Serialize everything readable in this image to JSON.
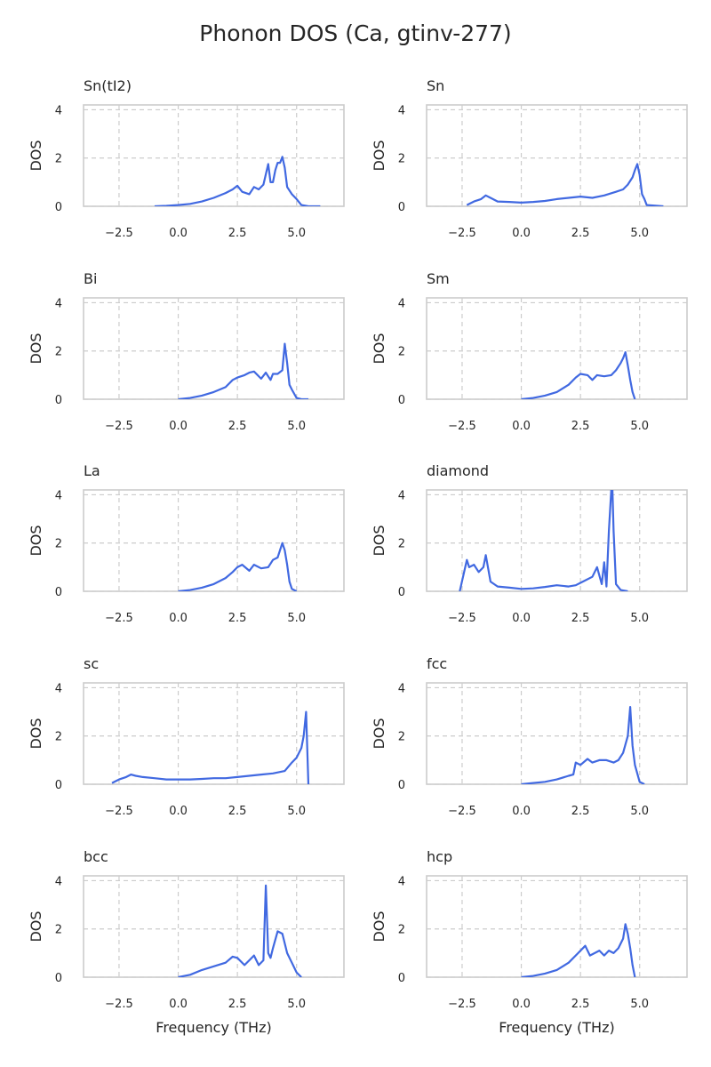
{
  "title": "Phonon DOS (Ca, gtinv-277)",
  "colors": {
    "line": "#4169e1",
    "grid": "#cccccc",
    "spine": "#cccccc",
    "text": "#262626"
  },
  "chart_data": [
    {
      "type": "line",
      "title": "Sn(tI2)",
      "xlabel": "",
      "ylabel": "DOS",
      "xlim": [
        -4,
        7
      ],
      "ylim": [
        0,
        4.2
      ],
      "xticks": [
        "−2.5",
        "0.0",
        "2.5",
        "5.0"
      ],
      "yticks": [
        "0",
        "2",
        "4"
      ],
      "grid": true,
      "series": [
        {
          "x": [
            -1.0,
            -0.5,
            0.0,
            0.5,
            1.0,
            1.5,
            2.0,
            2.3,
            2.5,
            2.7,
            3.0,
            3.2,
            3.4,
            3.6,
            3.8,
            3.9,
            4.0,
            4.1,
            4.2,
            4.3,
            4.4,
            4.5,
            4.6,
            4.8,
            5.0,
            5.2,
            5.5,
            6.0
          ],
          "y": [
            0.0,
            0.02,
            0.05,
            0.1,
            0.2,
            0.35,
            0.55,
            0.7,
            0.85,
            0.6,
            0.5,
            0.8,
            0.7,
            0.9,
            1.75,
            1.0,
            1.0,
            1.5,
            1.8,
            1.8,
            2.05,
            1.6,
            0.8,
            0.5,
            0.3,
            0.05,
            0.0,
            0.0
          ]
        }
      ]
    },
    {
      "type": "line",
      "title": "Sn",
      "xlabel": "",
      "ylabel": "DOS",
      "xlim": [
        -4,
        7
      ],
      "ylim": [
        0,
        4.2
      ],
      "xticks": [
        "−2.5",
        "0.0",
        "2.5",
        "5.0"
      ],
      "yticks": [
        "0",
        "2",
        "4"
      ],
      "grid": true,
      "series": [
        {
          "x": [
            -2.3,
            -2.0,
            -1.7,
            -1.5,
            -1.3,
            -1.0,
            -0.5,
            0.0,
            0.5,
            1.0,
            1.5,
            2.0,
            2.5,
            3.0,
            3.5,
            4.0,
            4.3,
            4.5,
            4.7,
            4.8,
            4.9,
            5.0,
            5.1,
            5.2,
            5.3,
            6.0
          ],
          "y": [
            0.05,
            0.2,
            0.3,
            0.45,
            0.35,
            0.2,
            0.18,
            0.15,
            0.18,
            0.22,
            0.3,
            0.35,
            0.4,
            0.35,
            0.45,
            0.6,
            0.7,
            0.9,
            1.2,
            1.5,
            1.75,
            1.3,
            0.5,
            0.3,
            0.05,
            0.0
          ]
        }
      ]
    },
    {
      "type": "line",
      "title": "Bi",
      "xlabel": "",
      "ylabel": "DOS",
      "xlim": [
        -4,
        7
      ],
      "ylim": [
        0,
        4.2
      ],
      "xticks": [
        "−2.5",
        "0.0",
        "2.5",
        "5.0"
      ],
      "yticks": [
        "0",
        "2",
        "4"
      ],
      "grid": true,
      "series": [
        {
          "x": [
            0.0,
            0.5,
            1.0,
            1.5,
            2.0,
            2.3,
            2.5,
            2.8,
            3.0,
            3.2,
            3.5,
            3.7,
            3.9,
            4.0,
            4.2,
            4.4,
            4.5,
            4.6,
            4.7,
            4.8,
            5.0,
            5.2,
            5.5
          ],
          "y": [
            0.0,
            0.05,
            0.15,
            0.3,
            0.5,
            0.8,
            0.9,
            1.0,
            1.1,
            1.15,
            0.85,
            1.1,
            0.8,
            1.05,
            1.05,
            1.2,
            2.3,
            1.5,
            0.6,
            0.4,
            0.05,
            0.0,
            0.0
          ]
        }
      ]
    },
    {
      "type": "line",
      "title": "Sm",
      "xlabel": "",
      "ylabel": "DOS",
      "xlim": [
        -4,
        7
      ],
      "ylim": [
        0,
        4.2
      ],
      "xticks": [
        "−2.5",
        "0.0",
        "2.5",
        "5.0"
      ],
      "yticks": [
        "0",
        "2",
        "4"
      ],
      "grid": true,
      "series": [
        {
          "x": [
            0.0,
            0.5,
            1.0,
            1.5,
            2.0,
            2.3,
            2.5,
            2.8,
            3.0,
            3.2,
            3.5,
            3.8,
            4.0,
            4.2,
            4.3,
            4.4,
            4.5,
            4.6,
            4.7,
            4.8
          ],
          "y": [
            0.0,
            0.05,
            0.15,
            0.3,
            0.6,
            0.9,
            1.05,
            1.0,
            0.8,
            1.0,
            0.95,
            1.0,
            1.2,
            1.5,
            1.7,
            1.95,
            1.4,
            0.8,
            0.3,
            0.0
          ]
        }
      ]
    },
    {
      "type": "line",
      "title": "La",
      "xlabel": "",
      "ylabel": "DOS",
      "xlim": [
        -4,
        7
      ],
      "ylim": [
        0,
        4.2
      ],
      "xticks": [
        "−2.5",
        "0.0",
        "2.5",
        "5.0"
      ],
      "yticks": [
        "0",
        "2",
        "4"
      ],
      "grid": true,
      "series": [
        {
          "x": [
            0.0,
            0.5,
            1.0,
            1.5,
            2.0,
            2.3,
            2.5,
            2.7,
            3.0,
            3.2,
            3.5,
            3.8,
            4.0,
            4.2,
            4.4,
            4.5,
            4.6,
            4.7,
            4.8,
            5.0
          ],
          "y": [
            0.0,
            0.05,
            0.15,
            0.3,
            0.55,
            0.8,
            1.0,
            1.1,
            0.85,
            1.1,
            0.95,
            1.0,
            1.3,
            1.4,
            2.0,
            1.7,
            1.1,
            0.4,
            0.1,
            0.0
          ]
        }
      ]
    },
    {
      "type": "line",
      "title": "diamond",
      "xlabel": "",
      "ylabel": "DOS",
      "xlim": [
        -4,
        7
      ],
      "ylim": [
        0,
        4.2
      ],
      "xticks": [
        "−2.5",
        "0.0",
        "2.5",
        "5.0"
      ],
      "yticks": [
        "0",
        "2",
        "4"
      ],
      "grid": true,
      "series": [
        {
          "x": [
            -2.6,
            -2.3,
            -2.2,
            -2.0,
            -1.8,
            -1.6,
            -1.5,
            -1.3,
            -1.0,
            -0.5,
            0.0,
            0.5,
            1.0,
            1.5,
            2.0,
            2.3,
            2.6,
            3.0,
            3.2,
            3.4,
            3.5,
            3.6,
            3.7,
            3.8,
            3.85,
            3.9,
            4.0,
            4.2,
            4.5
          ],
          "y": [
            0.0,
            1.3,
            1.0,
            1.1,
            0.8,
            1.0,
            1.5,
            0.4,
            0.2,
            0.15,
            0.1,
            0.12,
            0.18,
            0.25,
            0.2,
            0.25,
            0.4,
            0.6,
            1.0,
            0.3,
            1.2,
            0.2,
            2.5,
            4.2,
            4.2,
            2.5,
            0.3,
            0.05,
            0.0
          ]
        }
      ]
    },
    {
      "type": "line",
      "title": "sc",
      "xlabel": "",
      "ylabel": "DOS",
      "xlim": [
        -4,
        7
      ],
      "ylim": [
        0,
        4.2
      ],
      "xticks": [
        "−2.5",
        "0.0",
        "2.5",
        "5.0"
      ],
      "yticks": [
        "0",
        "2",
        "4"
      ],
      "grid": true,
      "series": [
        {
          "x": [
            -2.8,
            -2.5,
            -2.2,
            -2.0,
            -1.8,
            -1.5,
            -1.0,
            -0.5,
            0.0,
            0.5,
            1.0,
            1.5,
            2.0,
            2.5,
            3.0,
            3.5,
            4.0,
            4.5,
            4.8,
            5.0,
            5.2,
            5.3,
            5.4,
            5.5
          ],
          "y": [
            0.05,
            0.2,
            0.3,
            0.4,
            0.35,
            0.3,
            0.25,
            0.2,
            0.2,
            0.2,
            0.22,
            0.25,
            0.25,
            0.3,
            0.35,
            0.4,
            0.45,
            0.55,
            0.9,
            1.1,
            1.5,
            2.0,
            3.0,
            0.0
          ]
        }
      ]
    },
    {
      "type": "line",
      "title": "fcc",
      "xlabel": "",
      "ylabel": "DOS",
      "xlim": [
        -4,
        7
      ],
      "ylim": [
        0,
        4.2
      ],
      "xticks": [
        "−2.5",
        "0.0",
        "2.5",
        "5.0"
      ],
      "yticks": [
        "0",
        "2",
        "4"
      ],
      "grid": true,
      "series": [
        {
          "x": [
            0.0,
            0.5,
            1.0,
            1.5,
            2.0,
            2.2,
            2.3,
            2.5,
            2.8,
            3.0,
            3.3,
            3.6,
            3.9,
            4.1,
            4.3,
            4.5,
            4.6,
            4.7,
            4.8,
            5.0,
            5.2
          ],
          "y": [
            0.0,
            0.05,
            0.1,
            0.2,
            0.35,
            0.4,
            0.9,
            0.8,
            1.05,
            0.9,
            1.0,
            1.0,
            0.9,
            1.0,
            1.3,
            2.0,
            3.2,
            1.6,
            0.8,
            0.1,
            0.0
          ]
        }
      ]
    },
    {
      "type": "line",
      "title": "bcc",
      "xlabel": "",
      "ylabel": "DOS",
      "xlim": [
        -4,
        7
      ],
      "ylim": [
        0,
        4.2
      ],
      "xticks": [
        "−2.5",
        "0.0",
        "2.5",
        "5.0"
      ],
      "yticks": [
        "0",
        "2",
        "4"
      ],
      "grid": true,
      "series": [
        {
          "x": [
            0.0,
            0.5,
            1.0,
            1.5,
            2.0,
            2.3,
            2.5,
            2.8,
            3.0,
            3.2,
            3.4,
            3.6,
            3.7,
            3.8,
            3.9,
            4.0,
            4.2,
            4.4,
            4.6,
            4.8,
            5.0,
            5.2
          ],
          "y": [
            0.0,
            0.1,
            0.3,
            0.45,
            0.6,
            0.85,
            0.8,
            0.5,
            0.7,
            0.9,
            0.5,
            0.7,
            3.8,
            1.0,
            0.8,
            1.2,
            1.9,
            1.8,
            1.0,
            0.6,
            0.2,
            0.0
          ]
        }
      ]
    },
    {
      "type": "line",
      "title": "hcp",
      "xlabel": "",
      "ylabel": "DOS",
      "xlim": [
        -4,
        7
      ],
      "ylim": [
        0,
        4.2
      ],
      "xticks": [
        "−2.5",
        "0.0",
        "2.5",
        "5.0"
      ],
      "yticks": [
        "0",
        "2",
        "4"
      ],
      "grid": true,
      "series": [
        {
          "x": [
            0.0,
            0.5,
            1.0,
            1.5,
            2.0,
            2.4,
            2.7,
            2.9,
            3.1,
            3.3,
            3.5,
            3.7,
            3.9,
            4.1,
            4.3,
            4.4,
            4.5,
            4.6,
            4.7,
            4.8
          ],
          "y": [
            0.0,
            0.05,
            0.15,
            0.3,
            0.6,
            1.0,
            1.3,
            0.9,
            1.0,
            1.1,
            0.9,
            1.1,
            1.0,
            1.2,
            1.6,
            2.2,
            1.8,
            1.2,
            0.5,
            0.0
          ]
        }
      ]
    }
  ],
  "shared_xlabel": "Frequency (THz)"
}
